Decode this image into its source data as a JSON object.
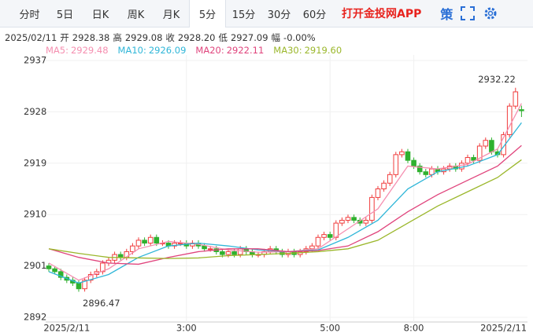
{
  "toolbar": {
    "tabs": [
      "分时",
      "5日",
      "日K",
      "周K",
      "月K",
      "5分",
      "15分",
      "30分",
      "60分"
    ],
    "selected": 5,
    "promo": "打开金投网APP",
    "strategy": "策"
  },
  "quote": {
    "date": "2025/02/11",
    "items": [
      {
        "name": "开",
        "value": 2928.38
      },
      {
        "name": "高",
        "value": 2929.08
      },
      {
        "name": "收",
        "value": 2928.2,
        "label": "2928.20"
      },
      {
        "name": "低",
        "value": 2927.09
      },
      {
        "name": "幅",
        "value": 0,
        "label": "-0.00%"
      }
    ]
  },
  "chart_data": {
    "type": "candlestick",
    "categories": [
      null,
      null,
      null,
      "2025/2/11",
      null,
      null,
      null,
      null,
      null,
      null,
      null,
      null,
      null,
      null,
      null,
      null,
      null,
      null,
      null,
      null,
      null,
      null,
      null,
      "3:00",
      null,
      null,
      null,
      null,
      null,
      null,
      null,
      null,
      null,
      null,
      null,
      null,
      null,
      null,
      null,
      null,
      null,
      null,
      null,
      null,
      null,
      null,
      null,
      "5:00",
      null,
      null,
      null,
      null,
      null,
      null,
      null,
      null,
      null,
      null,
      null,
      null,
      null,
      "8:00",
      null,
      null,
      null,
      null,
      null,
      null,
      null,
      null,
      null,
      null,
      null,
      null,
      null,
      null,
      "2025/2/11",
      null,
      null,
      null
    ],
    "open": [
      2901,
      2900.5,
      2900,
      2899,
      2898.5,
      2898,
      2897,
      2898.5,
      2899.5,
      2900,
      2901.5,
      2902,
      2903,
      2902.5,
      2903.5,
      2904.5,
      2905.5,
      2905,
      2906,
      2905,
      2905,
      2904.5,
      2905,
      2905,
      2904.5,
      2905,
      2904.5,
      2904,
      2904,
      2903.5,
      2903,
      2903.5,
      2903,
      2904,
      2903.5,
      2903,
      2903,
      2903.5,
      2904,
      2903.5,
      2903,
      2903.5,
      2903,
      2903.5,
      2904,
      2904.5,
      2906,
      2906.5,
      2906,
      2908.5,
      2909,
      2909.5,
      2909,
      2908.5,
      2909,
      2913,
      2914.5,
      2915.5,
      2917,
      2920.5,
      2921,
      2919.5,
      2918.5,
      2917.5,
      2917,
      2918,
      2917.5,
      2918,
      2918.5,
      2918,
      2919,
      2920,
      2919.5,
      2922,
      2923,
      2921,
      2920.5,
      2924,
      2929,
      2928.38
    ],
    "high": [
      2901.5,
      2901,
      2900.5,
      2899.5,
      2899,
      2898.5,
      2899,
      2900,
      2900.5,
      2902,
      2902.5,
      2903.5,
      2903.5,
      2904,
      2905,
      2906,
      2906,
      2906.5,
      2906.5,
      2905.5,
      2905.5,
      2905.5,
      2905.5,
      2905.5,
      2905.5,
      2905.5,
      2905,
      2904.5,
      2904.5,
      2904,
      2904,
      2904,
      2904.5,
      2904.5,
      2904,
      2903.5,
      2904,
      2904.5,
      2904.5,
      2904,
      2904,
      2904,
      2904,
      2904.5,
      2905,
      2906.5,
      2907,
      2907,
      2909,
      2909.5,
      2910,
      2910,
      2909.5,
      2909.5,
      2913.5,
      2915,
      2916,
      2917.5,
      2921,
      2921.5,
      2921.5,
      2920,
      2919,
      2918,
      2918.5,
      2918.5,
      2918.5,
      2919,
      2919,
      2919.5,
      2920.5,
      2920.5,
      2922.5,
      2923.5,
      2923.5,
      2921.5,
      2924.5,
      2929.5,
      2932.22,
      2929.08
    ],
    "low": [
      2900,
      2899.5,
      2898.5,
      2898,
      2897.5,
      2896.47,
      2896.5,
      2898,
      2899,
      2899.5,
      2901,
      2901.5,
      2902,
      2902,
      2903,
      2904,
      2904.5,
      2904.5,
      2904.5,
      2904.5,
      2904,
      2904,
      2904.5,
      2904,
      2904,
      2904,
      2903.5,
      2903.5,
      2903,
      2902.5,
      2902.5,
      2902.5,
      2902.5,
      2903,
      2902.5,
      2902.5,
      2902.5,
      2903,
      2903,
      2902.5,
      2902.5,
      2902.5,
      2902.5,
      2903,
      2903.5,
      2904,
      2905.5,
      2905.5,
      2905.5,
      2908,
      2908.5,
      2908.5,
      2908,
      2908,
      2908.5,
      2912.5,
      2914,
      2915,
      2916.5,
      2920,
      2919,
      2918,
      2917,
      2916.5,
      2916.5,
      2917,
      2917,
      2917.5,
      2917.5,
      2917.5,
      2918.5,
      2919,
      2919,
      2921.5,
      2920.5,
      2920,
      2920,
      2923.5,
      2928.5,
      2927.09
    ],
    "close": [
      2900.5,
      2900,
      2899,
      2898.5,
      2898,
      2897,
      2898.5,
      2899.5,
      2900,
      2901.5,
      2902,
      2903,
      2902.5,
      2903.5,
      2904.5,
      2905.5,
      2905,
      2906,
      2905,
      2905,
      2904.5,
      2905,
      2905,
      2904.5,
      2905,
      2904.5,
      2904,
      2904,
      2903.5,
      2903,
      2903.5,
      2903,
      2904,
      2903.5,
      2903,
      2903,
      2903.5,
      2904,
      2903.5,
      2903,
      2903.5,
      2903,
      2903.5,
      2904,
      2904.5,
      2906,
      2906.5,
      2906,
      2908.5,
      2909,
      2909.5,
      2909,
      2908.5,
      2909,
      2913,
      2914.5,
      2915.5,
      2917,
      2920.5,
      2921,
      2919.5,
      2918.5,
      2917.5,
      2917,
      2918,
      2917.5,
      2918,
      2918.5,
      2918,
      2919,
      2920,
      2919.5,
      2922,
      2923,
      2921,
      2920.5,
      2924,
      2929,
      2931.5,
      2928.2
    ],
    "up_color": "#f03c3c",
    "down_color": "#2fb12f",
    "ma": [
      {
        "name": "MA5",
        "color": "#f58fb0",
        "legend_value": 2929.48,
        "x": [
          0,
          5,
          10,
          15,
          20,
          25,
          30,
          35,
          40,
          45,
          50,
          55,
          60,
          65,
          70,
          75,
          79
        ],
        "values": [
          2901.5,
          2898.5,
          2900.5,
          2904,
          2905.3,
          2904.8,
          2903.8,
          2903.4,
          2903.5,
          2904,
          2907.5,
          2911,
          2918.5,
          2918,
          2918.8,
          2921.5,
          2929.48
        ]
      },
      {
        "name": "MA10",
        "color": "#2fb6d8",
        "legend_value": 2926.09,
        "x": [
          0,
          5,
          10,
          15,
          20,
          25,
          30,
          35,
          40,
          45,
          50,
          55,
          60,
          65,
          70,
          75,
          79
        ],
        "values": [
          2900,
          2898,
          2899.5,
          2902.5,
          2904.5,
          2905,
          2904.5,
          2903.8,
          2903.5,
          2903.8,
          2906,
          2909,
          2914.5,
          2917.5,
          2918.5,
          2920.5,
          2926.09
        ]
      },
      {
        "name": "MA20",
        "color": "#e0447c",
        "legend_value": 2922.11,
        "x": [
          0,
          5,
          10,
          15,
          20,
          25,
          30,
          35,
          40,
          45,
          50,
          55,
          60,
          65,
          70,
          75,
          79
        ],
        "values": [
          2904,
          2902.5,
          2901.5,
          2901.3,
          2902.5,
          2903.5,
          2904,
          2904,
          2903.5,
          2903.7,
          2904.5,
          2907,
          2910.5,
          2913.5,
          2916,
          2918.5,
          2922.11
        ]
      },
      {
        "name": "MA30",
        "color": "#9bb72b",
        "legend_value": {
          "value": 2919.6,
          "label": "2919.60"
        },
        "x": [
          0,
          5,
          10,
          15,
          20,
          25,
          30,
          35,
          40,
          45,
          50,
          55,
          60,
          65,
          70,
          75,
          79
        ],
        "values": [
          2904,
          2903.2,
          2902.5,
          2902.4,
          2902.3,
          2902.4,
          2902.8,
          2903,
          2903.2,
          2903.5,
          2904,
          2905.5,
          2908.5,
          2911.5,
          2914,
          2916.5,
          2919.6
        ]
      }
    ],
    "ylim": [
      2892,
      2937
    ],
    "yticks": [
      2937,
      2928,
      2919,
      2910,
      2901,
      2892
    ],
    "grid": true
  }
}
